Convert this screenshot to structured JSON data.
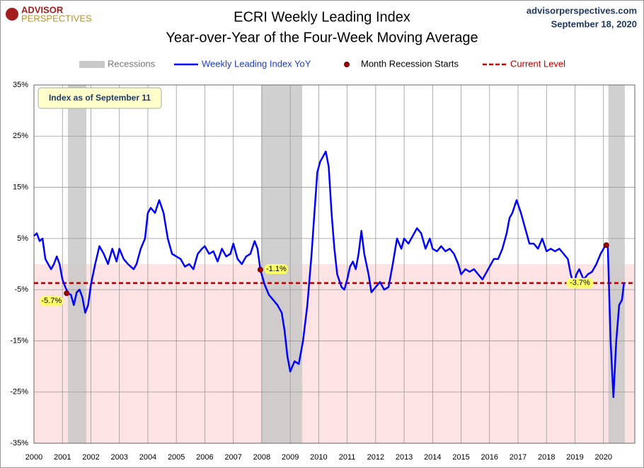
{
  "chart_data": {
    "type": "line",
    "title": "ECRI Weekly Leading Index",
    "subtitle": "Year-over-Year of the Four-Week Moving Average",
    "logo": [
      "ADVISOR",
      "PERSPECTIVES"
    ],
    "source": "advisorperspectives.com",
    "date": "September 18, 2020",
    "annotation": "Index as of September 11",
    "xlim": [
      2000,
      2021.1
    ],
    "xticks": [
      2000,
      2001,
      2002,
      2003,
      2004,
      2005,
      2006,
      2007,
      2008,
      2009,
      2010,
      2011,
      2012,
      2013,
      2014,
      2015,
      2016,
      2017,
      2018,
      2019,
      2020
    ],
    "ylim": [
      -35,
      35
    ],
    "yticks": [
      {
        "value": 35,
        "label": "35%"
      },
      {
        "value": 25,
        "label": "25%"
      },
      {
        "value": 15,
        "label": "15%"
      },
      {
        "value": 5,
        "label": "5%"
      },
      {
        "value": -5,
        "label": "-5%"
      },
      {
        "value": -15,
        "label": "-15%"
      },
      {
        "value": -25,
        "label": "-25%"
      },
      {
        "value": -35,
        "label": "-35%"
      }
    ],
    "grid": true,
    "negative_shading": "#fde3e3",
    "recessions": {
      "name": "Recessions",
      "color": "#c8c8c8",
      "spans": [
        [
          2001.19,
          2001.84
        ],
        [
          2007.98,
          2009.42
        ],
        [
          2020.17,
          2020.75
        ]
      ]
    },
    "series": [
      {
        "name": "Weekly Leading Index YoY",
        "color": "#0000ff",
        "x": [
          2000.0,
          2000.1,
          2000.2,
          2000.3,
          2000.4,
          2000.5,
          2000.6,
          2000.7,
          2000.8,
          2000.9,
          2001.0,
          2001.1,
          2001.2,
          2001.3,
          2001.4,
          2001.5,
          2001.6,
          2001.7,
          2001.8,
          2001.9,
          2002.0,
          2002.15,
          2002.3,
          2002.45,
          2002.6,
          2002.75,
          2002.9,
          2003.0,
          2003.15,
          2003.3,
          2003.5,
          2003.6,
          2003.75,
          2003.9,
          2004.0,
          2004.1,
          2004.25,
          2004.4,
          2004.55,
          2004.7,
          2004.85,
          2005.0,
          2005.15,
          2005.3,
          2005.45,
          2005.6,
          2005.75,
          2005.9,
          2006.0,
          2006.15,
          2006.3,
          2006.45,
          2006.6,
          2006.75,
          2006.9,
          2007.0,
          2007.15,
          2007.3,
          2007.45,
          2007.6,
          2007.75,
          2007.85,
          2007.95,
          2008.1,
          2008.25,
          2008.4,
          2008.55,
          2008.7,
          2008.8,
          2008.9,
          2009.0,
          2009.15,
          2009.3,
          2009.45,
          2009.6,
          2009.75,
          2009.85,
          2009.95,
          2010.05,
          2010.15,
          2010.25,
          2010.35,
          2010.45,
          2010.55,
          2010.65,
          2010.8,
          2010.9,
          2011.0,
          2011.1,
          2011.2,
          2011.3,
          2011.4,
          2011.5,
          2011.6,
          2011.75,
          2011.85,
          2012.0,
          2012.15,
          2012.3,
          2012.45,
          2012.6,
          2012.75,
          2012.9,
          2013.0,
          2013.15,
          2013.3,
          2013.45,
          2013.6,
          2013.75,
          2013.9,
          2014.0,
          2014.15,
          2014.3,
          2014.45,
          2014.6,
          2014.75,
          2014.9,
          2015.0,
          2015.15,
          2015.3,
          2015.45,
          2015.6,
          2015.75,
          2015.9,
          2016.0,
          2016.15,
          2016.3,
          2016.45,
          2016.6,
          2016.7,
          2016.8,
          2016.95,
          2017.1,
          2017.25,
          2017.4,
          2017.55,
          2017.7,
          2017.85,
          2018.0,
          2018.15,
          2018.3,
          2018.45,
          2018.6,
          2018.75,
          2018.85,
          2018.95,
          2019.05,
          2019.15,
          2019.3,
          2019.45,
          2019.6,
          2019.75,
          2019.9,
          2020.05,
          2020.15,
          2020.25,
          2020.35,
          2020.45,
          2020.55,
          2020.65,
          2020.72
        ],
        "values": [
          5.5,
          6,
          4.5,
          5,
          1,
          0,
          -1,
          0,
          1.5,
          0,
          -3,
          -4.5,
          -5.7,
          -6,
          -8,
          -5.5,
          -5,
          -6.5,
          -9.5,
          -8,
          -4,
          0,
          3.5,
          2,
          0,
          3,
          0.5,
          3,
          1,
          0,
          -1,
          0,
          3,
          5,
          10,
          11,
          10,
          12.5,
          10,
          5,
          2,
          1.5,
          1,
          -0.5,
          0,
          -1,
          2,
          3,
          3.5,
          2,
          2.5,
          0.5,
          3,
          1.5,
          2,
          4,
          1,
          0,
          1.5,
          2,
          4.5,
          3,
          -1.1,
          -4,
          -6,
          -7,
          -8,
          -9.5,
          -13,
          -18,
          -21,
          -19,
          -19.5,
          -15,
          -8,
          2,
          10,
          18,
          20,
          21,
          22,
          19,
          10,
          3,
          -2,
          -4.5,
          -5,
          -3,
          -0.5,
          0.5,
          -1,
          2,
          6.5,
          2,
          -2,
          -5.5,
          -4.5,
          -3.5,
          -5,
          -4.5,
          0,
          5,
          3,
          5,
          4,
          5.5,
          7,
          6,
          3,
          5,
          3,
          2.5,
          3.5,
          2.5,
          3,
          2,
          0,
          -2,
          -1,
          -1.5,
          -1,
          -2,
          -3,
          -1.5,
          -0.5,
          1,
          1,
          3,
          6,
          9,
          10,
          12.5,
          10,
          7,
          4,
          4,
          3,
          5,
          2.5,
          3,
          2.5,
          3,
          2,
          1,
          -2,
          -4,
          -2,
          -1,
          -3,
          -2,
          -1.5,
          0,
          2,
          3.5,
          3.7,
          -15,
          -26,
          -15,
          -8,
          -7,
          -3.7
        ]
      }
    ],
    "recession_starts": {
      "name": "Month Recession Starts",
      "color": "#a00000",
      "points": [
        {
          "x": 2001.15,
          "value": -5.7,
          "label": "-5.7%"
        },
        {
          "x": 2007.95,
          "value": -1.1,
          "label": "-1.1%"
        },
        {
          "x": 2020.1,
          "value": 3.7
        }
      ]
    },
    "current_level": {
      "name": "Current Level",
      "color": "#c00000",
      "value": -3.7,
      "label": "-3.7%"
    }
  }
}
